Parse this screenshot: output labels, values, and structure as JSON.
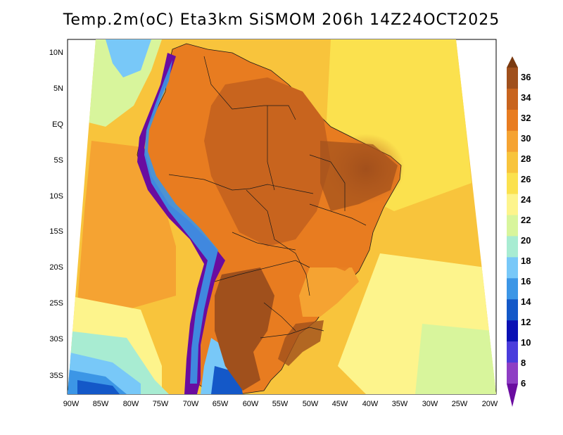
{
  "title": "Temp.2m(oC) Eta3km SiSMOM 206h 14Z24OCT2025",
  "map": {
    "lat_labels": [
      "10N",
      "5N",
      "EQ",
      "5S",
      "10S",
      "15S",
      "20S",
      "25S",
      "30S",
      "35S"
    ],
    "lon_labels": [
      "90W",
      "85W",
      "80W",
      "75W",
      "70W",
      "65W",
      "60W",
      "55W",
      "50W",
      "45W",
      "40W",
      "35W",
      "30W",
      "25W",
      "20W"
    ]
  },
  "colorbar": {
    "labels": [
      "36",
      "34",
      "32",
      "30",
      "28",
      "26",
      "24",
      "22",
      "20",
      "18",
      "16",
      "14",
      "12",
      "10",
      "8",
      "6"
    ],
    "colors": [
      "#7a3a10",
      "#a0501c",
      "#c8641e",
      "#e87c20",
      "#f5a332",
      "#f8c43c",
      "#fbe14e",
      "#fdf48c",
      "#d8f59c",
      "#a8ecd2",
      "#78c8f8",
      "#3c96e6",
      "#1458c8",
      "#0a10b4",
      "#4a3cdc",
      "#8e3ec4",
      "#6a0ca0"
    ]
  }
}
